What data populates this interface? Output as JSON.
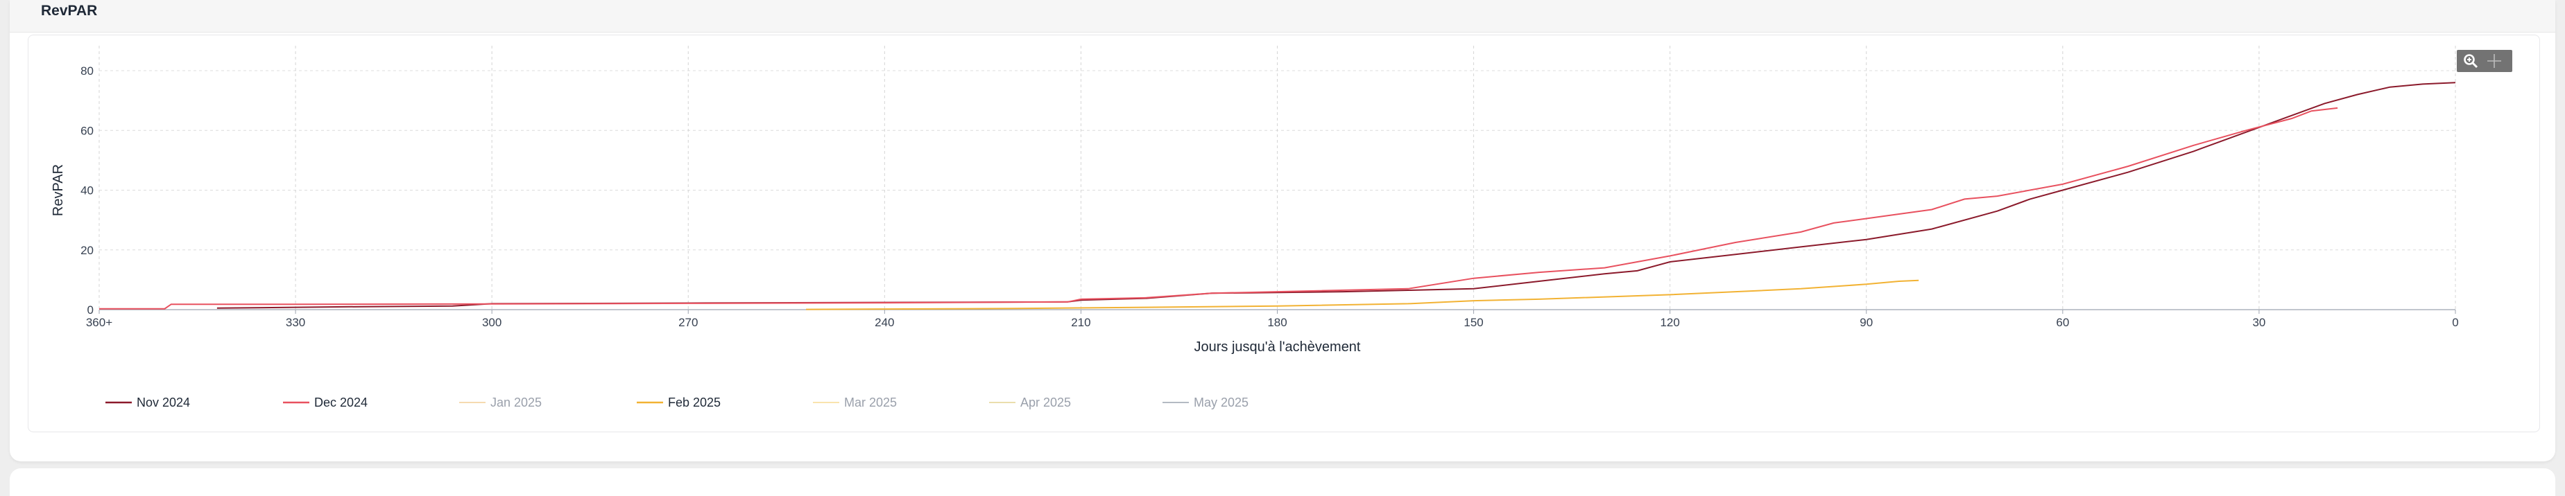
{
  "panel": {
    "title": "RevPAR"
  },
  "toolbar": {
    "zoom_icon": "zoom-in-icon",
    "pan_icon": "pan-icon"
  },
  "chart_data": {
    "type": "line",
    "title": "",
    "xlabel": "Jours jusqu'à l'achèvement",
    "ylabel": "RevPAR",
    "x_reversed": true,
    "xlim": [
      360,
      0
    ],
    "ylim": [
      0,
      80
    ],
    "x_ticks": [
      {
        "value": 360,
        "label": "360+"
      },
      {
        "value": 330,
        "label": "330"
      },
      {
        "value": 300,
        "label": "300"
      },
      {
        "value": 270,
        "label": "270"
      },
      {
        "value": 240,
        "label": "240"
      },
      {
        "value": 210,
        "label": "210"
      },
      {
        "value": 180,
        "label": "180"
      },
      {
        "value": 150,
        "label": "150"
      },
      {
        "value": 120,
        "label": "120"
      },
      {
        "value": 90,
        "label": "90"
      },
      {
        "value": 60,
        "label": "60"
      },
      {
        "value": 30,
        "label": "30"
      },
      {
        "value": 0,
        "label": "0"
      }
    ],
    "y_ticks": [
      0,
      20,
      40,
      60,
      80
    ],
    "grid": true,
    "legend_position": "bottom-left",
    "series": [
      {
        "name": "Nov 2024",
        "color": "#8b1a2b",
        "visible": true,
        "points": [
          [
            342,
            0.5
          ],
          [
            330,
            0.8
          ],
          [
            320,
            1.0
          ],
          [
            306,
            1.2
          ],
          [
            300,
            2.0
          ],
          [
            270,
            2.2
          ],
          [
            240,
            2.4
          ],
          [
            212,
            2.6
          ],
          [
            210,
            3.2
          ],
          [
            200,
            3.8
          ],
          [
            190,
            5.5
          ],
          [
            170,
            6.0
          ],
          [
            160,
            6.5
          ],
          [
            150,
            7.0
          ],
          [
            140,
            9.5
          ],
          [
            130,
            12.0
          ],
          [
            125,
            13.0
          ],
          [
            120,
            16.0
          ],
          [
            110,
            18.5
          ],
          [
            100,
            21.0
          ],
          [
            90,
            23.5
          ],
          [
            80,
            27.0
          ],
          [
            70,
            33.0
          ],
          [
            65,
            37.0
          ],
          [
            60,
            40.0
          ],
          [
            50,
            46.0
          ],
          [
            40,
            53.0
          ],
          [
            30,
            61.0
          ],
          [
            25,
            65.0
          ],
          [
            20,
            69.0
          ],
          [
            15,
            72.0
          ],
          [
            10,
            74.5
          ],
          [
            5,
            75.5
          ],
          [
            0,
            76.0
          ]
        ]
      },
      {
        "name": "Dec 2024",
        "color": "#e8515f",
        "visible": true,
        "points": [
          [
            360,
            0.3
          ],
          [
            350,
            0.3
          ],
          [
            349,
            1.8
          ],
          [
            330,
            1.8
          ],
          [
            300,
            1.9
          ],
          [
            270,
            2.1
          ],
          [
            240,
            2.3
          ],
          [
            212,
            2.6
          ],
          [
            210,
            3.5
          ],
          [
            200,
            4.0
          ],
          [
            190,
            5.5
          ],
          [
            180,
            6.0
          ],
          [
            160,
            7.0
          ],
          [
            150,
            10.5
          ],
          [
            140,
            12.5
          ],
          [
            130,
            14.0
          ],
          [
            125,
            16.0
          ],
          [
            120,
            18.0
          ],
          [
            110,
            22.5
          ],
          [
            100,
            26.0
          ],
          [
            95,
            29.0
          ],
          [
            90,
            30.5
          ],
          [
            85,
            32.0
          ],
          [
            80,
            33.5
          ],
          [
            75,
            37.0
          ],
          [
            70,
            38.0
          ],
          [
            60,
            42.0
          ],
          [
            50,
            48.0
          ],
          [
            40,
            55.0
          ],
          [
            32,
            60.0
          ],
          [
            25,
            64.0
          ],
          [
            22,
            66.5
          ],
          [
            18,
            67.5
          ]
        ]
      },
      {
        "name": "Jan 2025",
        "color": "#f3cd96",
        "visible": false,
        "points": []
      },
      {
        "name": "Feb 2025",
        "color": "#f2b233",
        "visible": true,
        "points": [
          [
            252,
            0.1
          ],
          [
            240,
            0.2
          ],
          [
            220,
            0.4
          ],
          [
            200,
            0.8
          ],
          [
            180,
            1.2
          ],
          [
            160,
            2.0
          ],
          [
            150,
            3.0
          ],
          [
            140,
            3.5
          ],
          [
            120,
            5.0
          ],
          [
            110,
            6.0
          ],
          [
            100,
            7.0
          ],
          [
            90,
            8.5
          ],
          [
            85,
            9.5
          ],
          [
            82,
            9.8
          ]
        ]
      },
      {
        "name": "Mar 2025",
        "color": "#f7dc92",
        "visible": false,
        "points": []
      },
      {
        "name": "Apr 2025",
        "color": "#e3d391",
        "visible": false,
        "points": []
      },
      {
        "name": "May 2025",
        "color": "#9ca3af",
        "visible": false,
        "points": []
      }
    ]
  }
}
